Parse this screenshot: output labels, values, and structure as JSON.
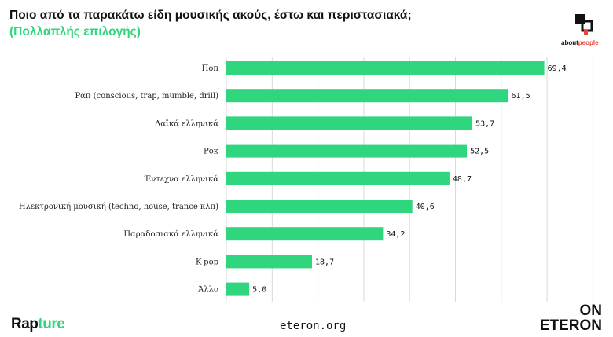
{
  "header": {
    "title": "Ποιο από τα παρακάτω είδη μουσικής ακούς, έστω και περιστασιακά;",
    "subtitle": "(Πολλαπλής επιλογής)"
  },
  "brand": {
    "aboutpeople_about": "about",
    "aboutpeople_people": "people",
    "rapture_prefix": "Rap",
    "rapture_suffix": "ture",
    "site": "eteron.org",
    "on_line1": "ON",
    "on_line2": "ETERON"
  },
  "colors": {
    "bar": "#2fd67e",
    "grid": "#d9d9d9",
    "accent_red": "#e8463a"
  },
  "chart_data": {
    "type": "bar",
    "orientation": "horizontal",
    "title": "Ποιο από τα παρακάτω είδη μουσικής ακούς, έστω και περιστασιακά;",
    "subtitle": "(Πολλαπλής επιλογής)",
    "categories": [
      "Ποπ",
      "Ραπ (conscious, trap, mumble, drill)",
      "Λαϊκά ελληνικά",
      "Ροκ",
      "Έντεχνα ελληνικά",
      "Ηλεκτρονική μουσική (techno, house, trance κλπ)",
      "Παραδοσιακά ελληνικά",
      "K-pop",
      "Άλλο"
    ],
    "values": [
      69.4,
      61.5,
      53.7,
      52.5,
      48.7,
      40.6,
      34.2,
      18.7,
      5.0
    ],
    "value_labels": [
      "69,4",
      "61,5",
      "53,7",
      "52,5",
      "48,7",
      "40,6",
      "34,2",
      "18,7",
      "5,0"
    ],
    "xlim": [
      0,
      80
    ],
    "grid": true,
    "xlabel": "",
    "ylabel": ""
  }
}
